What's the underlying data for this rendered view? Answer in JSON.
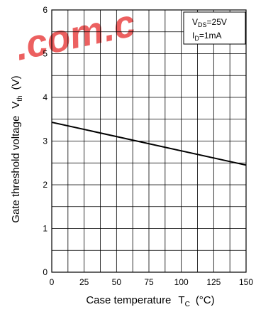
{
  "watermark": {
    "text": ".com.c",
    "color": "#e94545"
  },
  "chart_data": {
    "type": "line",
    "x_axis": {
      "label": "Case temperature",
      "symbol": "T",
      "symbol_sub": "C",
      "unit": "(°C)",
      "range": [
        0,
        150
      ],
      "ticks": [
        0,
        25,
        50,
        75,
        100,
        125,
        150
      ],
      "minor_step": 12.5
    },
    "y_axis": {
      "label": "Gate threshold voltage",
      "symbol": "V",
      "symbol_sub": "th",
      "unit": "(V)",
      "range": [
        0,
        6
      ],
      "ticks": [
        0,
        1,
        2,
        3,
        4,
        5,
        6
      ],
      "minor_step": 0.5
    },
    "grid": true,
    "legend_box": {
      "position": "top-right",
      "lines": [
        {
          "main": "V",
          "sub": "DS",
          "rest": "=25V"
        },
        {
          "main": "I",
          "sub": "D",
          "rest": "=1mA"
        }
      ]
    },
    "series": [
      {
        "x": [
          0,
          150
        ],
        "y": [
          3.43,
          2.45
        ],
        "color": "#000000"
      }
    ]
  }
}
